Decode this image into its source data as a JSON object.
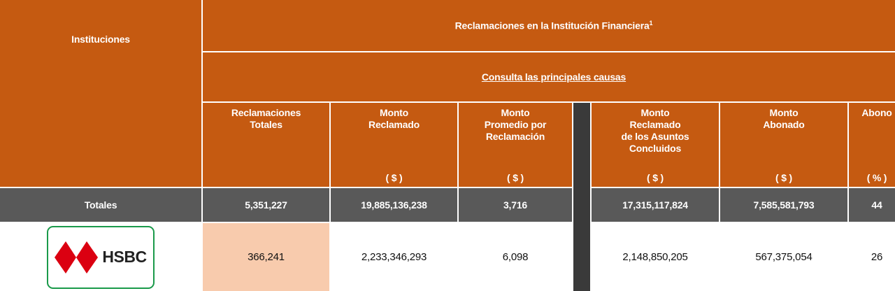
{
  "header": {
    "instituciones": "Instituciones",
    "reclamaciones_title": "Reclamaciones en la Institución Financiera",
    "reclamaciones_footnote": "1",
    "consulta_link": "Consulta las principales causas"
  },
  "columns": [
    {
      "label_lines": [
        "Reclamaciones",
        "Totales"
      ],
      "unit": ""
    },
    {
      "label_lines": [
        "Monto",
        "Reclamado"
      ],
      "unit": "( $ )"
    },
    {
      "label_lines": [
        "Monto",
        "Promedio por",
        "Reclamación"
      ],
      "unit": "( $ )"
    },
    {
      "label_lines": [
        "Monto",
        "Reclamado",
        "de los Asuntos",
        "Concluidos"
      ],
      "unit": "( $ )"
    },
    {
      "label_lines": [
        "Monto",
        "Abonado"
      ],
      "unit": "( $ )"
    },
    {
      "label_lines": [
        "Abono"
      ],
      "unit": "( % )"
    }
  ],
  "totals": {
    "label": "Totales",
    "values": [
      "5,351,227",
      "19,885,136,238",
      "3,716",
      "17,315,117,824",
      "7,585,581,793",
      "44"
    ]
  },
  "rows": [
    {
      "institution": "HSBC",
      "logo_colors": {
        "red": "#db0011",
        "border": "#1a9a4a"
      },
      "values": [
        "366,241",
        "2,233,346,293",
        "6,098",
        "2,148,850,205",
        "567,375,054",
        "26"
      ]
    }
  ],
  "colors": {
    "header_orange": "#c55a11",
    "totals_gray": "#595959",
    "highlight_peach": "#f8cbad"
  }
}
